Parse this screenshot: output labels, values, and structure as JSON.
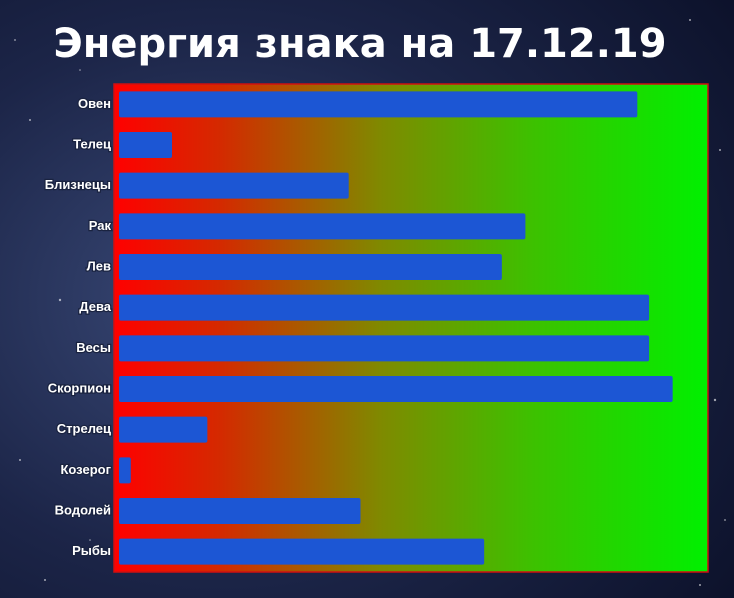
{
  "chart_data": {
    "type": "bar",
    "orientation": "horizontal",
    "title": "Энергия знака на 17.12.19",
    "categories": [
      "Овен",
      "Телец",
      "Близнецы",
      "Рак",
      "Лев",
      "Дева",
      "Весы",
      "Скорпион",
      "Стрелец",
      "Козерог",
      "Водолей",
      "Рыбы"
    ],
    "values": [
      88,
      9,
      39,
      69,
      65,
      90,
      90,
      94,
      15,
      2,
      41,
      62
    ],
    "color": "#1c56d4",
    "xlim": [
      0,
      100
    ]
  }
}
